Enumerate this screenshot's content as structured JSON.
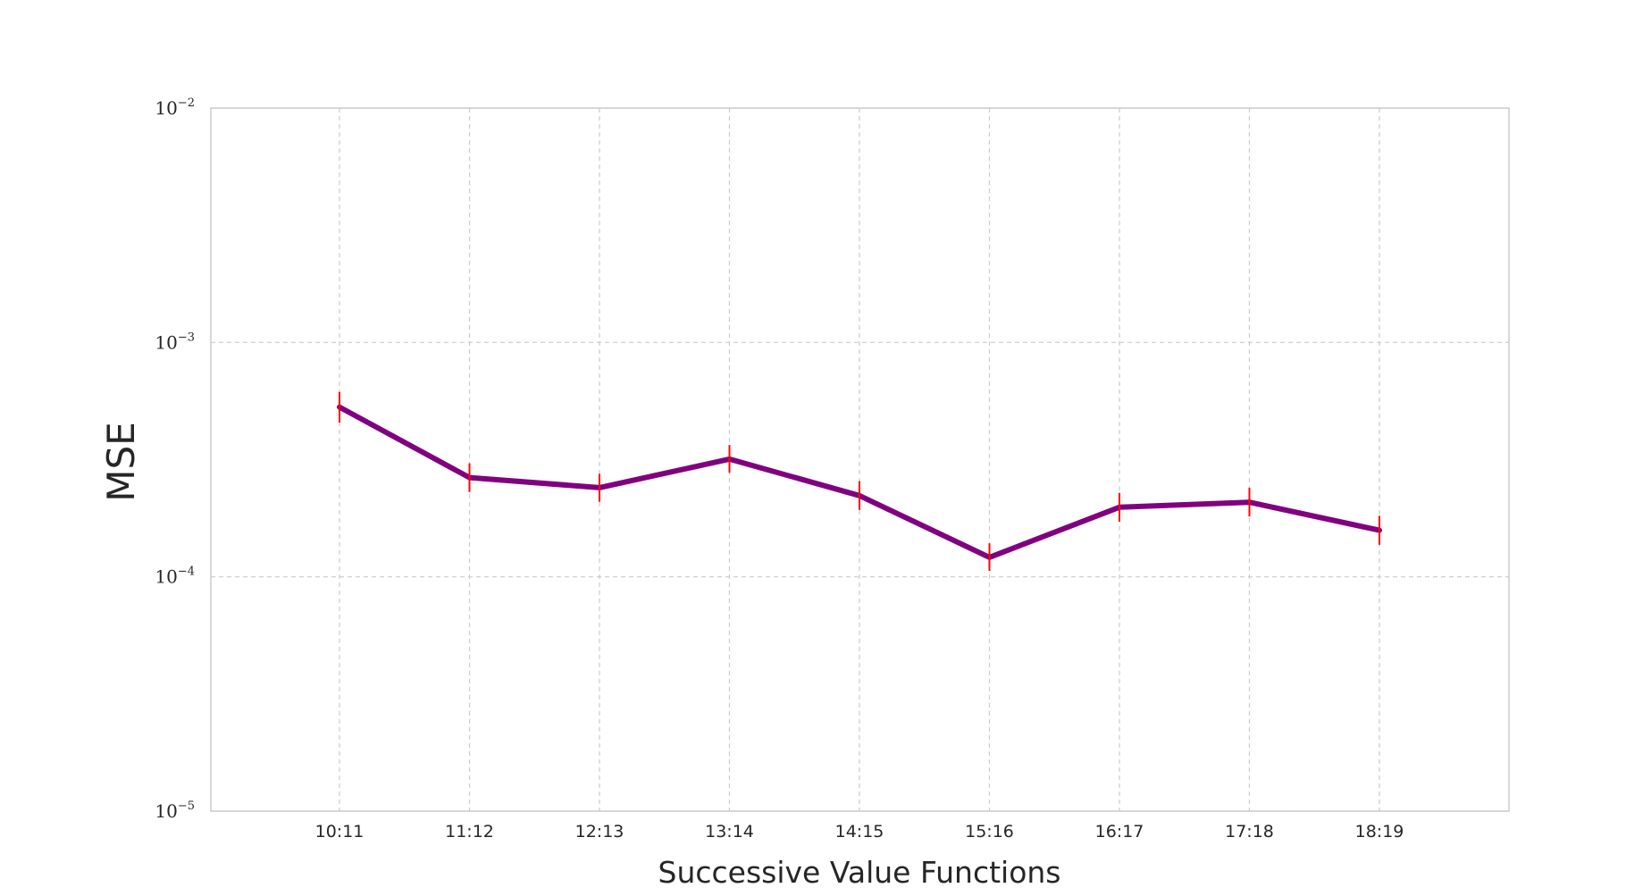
{
  "chart_data": {
    "type": "line",
    "title": "",
    "xlabel": "Successive Value Functions",
    "ylabel": "MSE",
    "yscale": "log",
    "ylim": [
      1e-05,
      0.01
    ],
    "yticks": [
      {
        "value": 1e-05,
        "base": "10",
        "exp": "−5"
      },
      {
        "value": 0.0001,
        "base": "10",
        "exp": "−4"
      },
      {
        "value": 0.001,
        "base": "10",
        "exp": "−3"
      },
      {
        "value": 0.01,
        "base": "10",
        "exp": "−2"
      }
    ],
    "grid": true,
    "categories": [
      "10:11",
      "11:12",
      "12:13",
      "13:14",
      "14:15",
      "15:16",
      "16:17",
      "17:18",
      "18:19"
    ],
    "series": [
      {
        "values": [
          0.00053,
          0.000265,
          0.00024,
          0.000318,
          0.000222,
          0.000121,
          0.000198,
          0.000208,
          0.000158
        ],
        "err_low": [
          0.000455,
          0.00023,
          0.000209,
          0.000278,
          0.000193,
          0.000106,
          0.000172,
          0.000181,
          0.000137
        ],
        "err_high": [
          0.000615,
          0.000305,
          0.000275,
          0.000365,
          0.000256,
          0.000139,
          0.000228,
          0.00024,
          0.000182
        ],
        "color": "#800080",
        "error_color": "#ff0000"
      }
    ],
    "colors": {
      "grid": "#cccccc",
      "frame": "#cccccc",
      "text": "#262626"
    }
  }
}
